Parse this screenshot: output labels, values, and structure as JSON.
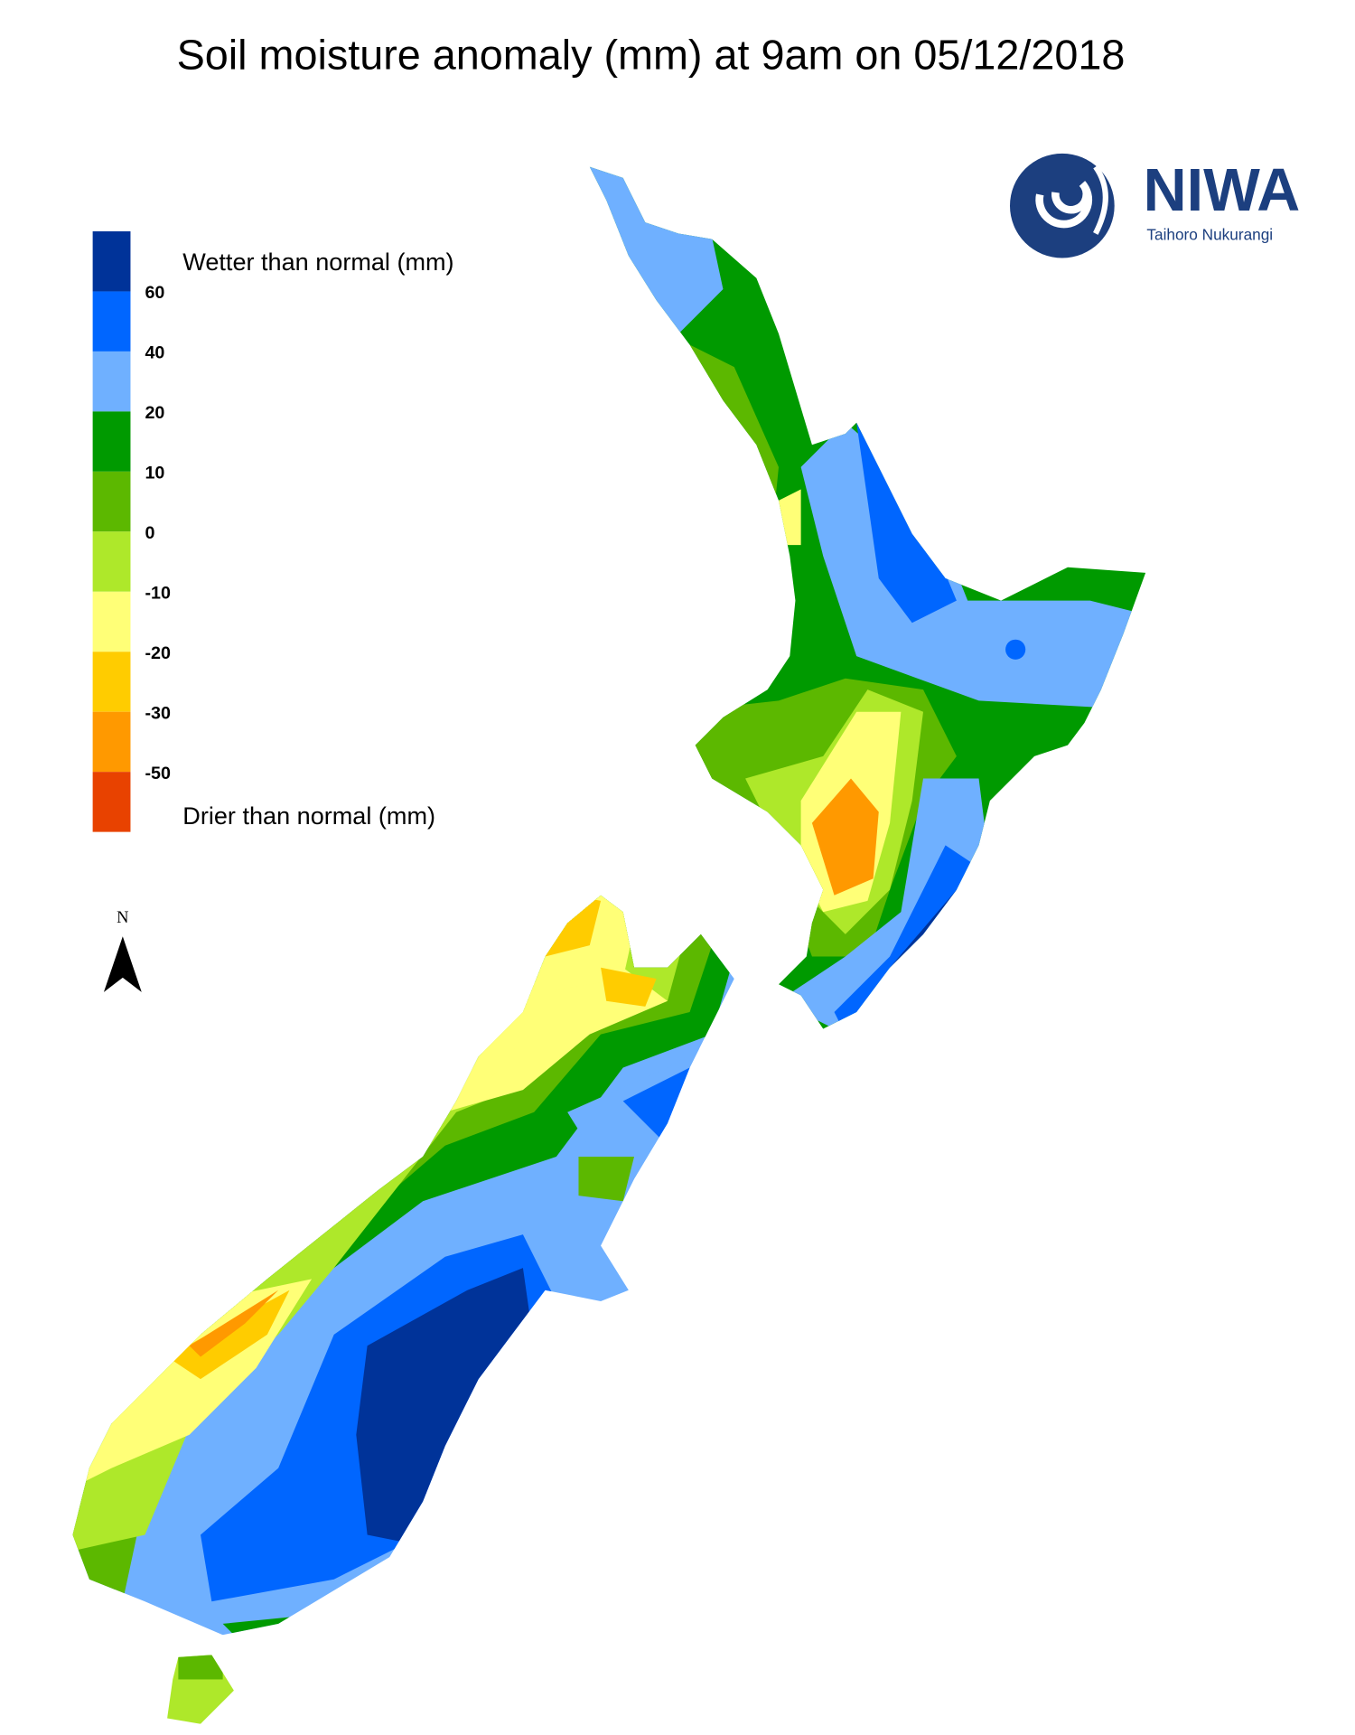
{
  "title": "Soil moisture anomaly (mm) at 9am on 05/12/2018",
  "legend": {
    "wetter_label": "Wetter than normal (mm)",
    "drier_label": "Drier than normal (mm)",
    "ticks": [
      60,
      40,
      20,
      10,
      0,
      -10,
      -20,
      -30,
      -50
    ],
    "colors": [
      "#003399",
      "#0066ff",
      "#6fb0ff",
      "#009a00",
      "#5cb800",
      "#aee82a",
      "#ffff77",
      "#ffcc00",
      "#ff9900",
      "#e84200"
    ]
  },
  "logo": {
    "name": "NIWA",
    "tagline": "Taihoro Nukurangi"
  },
  "north_label": "N"
}
